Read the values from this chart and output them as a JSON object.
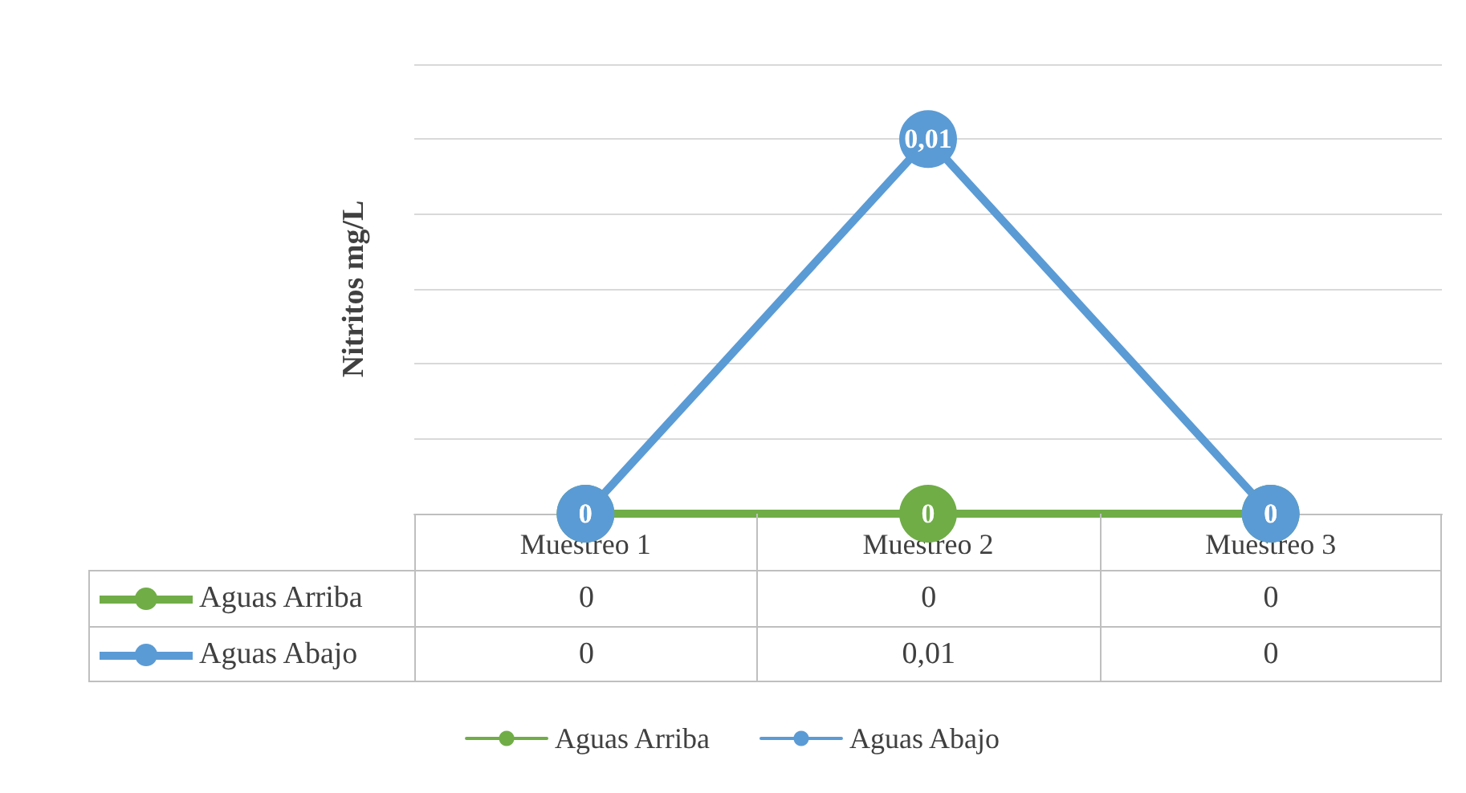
{
  "chart_data": {
    "type": "line",
    "ylabel": "Nitritos mg/L",
    "categories": [
      "Muestreo 1",
      "Muestreo 2",
      "Muestreo 3"
    ],
    "series": [
      {
        "name": "Aguas Arriba",
        "color": "#70ad47",
        "values": [
          0,
          0,
          0
        ],
        "value_labels": [
          "0",
          "0",
          "0"
        ]
      },
      {
        "name": "Aguas Abajo",
        "color": "#5b9bd5",
        "values": [
          0,
          0.01,
          0
        ],
        "value_labels": [
          "0",
          "0,01",
          "0"
        ]
      }
    ],
    "ylim": [
      0,
      0.012
    ],
    "yticks": [
      {
        "value": 0,
        "label": null
      },
      {
        "value": 0.002,
        "label": null
      },
      {
        "value": 0.004,
        "label": null
      },
      {
        "value": 0.006,
        "label": null
      },
      {
        "value": 0.008,
        "label": null
      },
      {
        "value": 0.01,
        "label": null
      },
      {
        "value": 0.012,
        "label": null
      }
    ],
    "tick_labels": "x",
    "grid": "y",
    "legend": "bottom",
    "marker": "circle",
    "line_style": "solid"
  }
}
